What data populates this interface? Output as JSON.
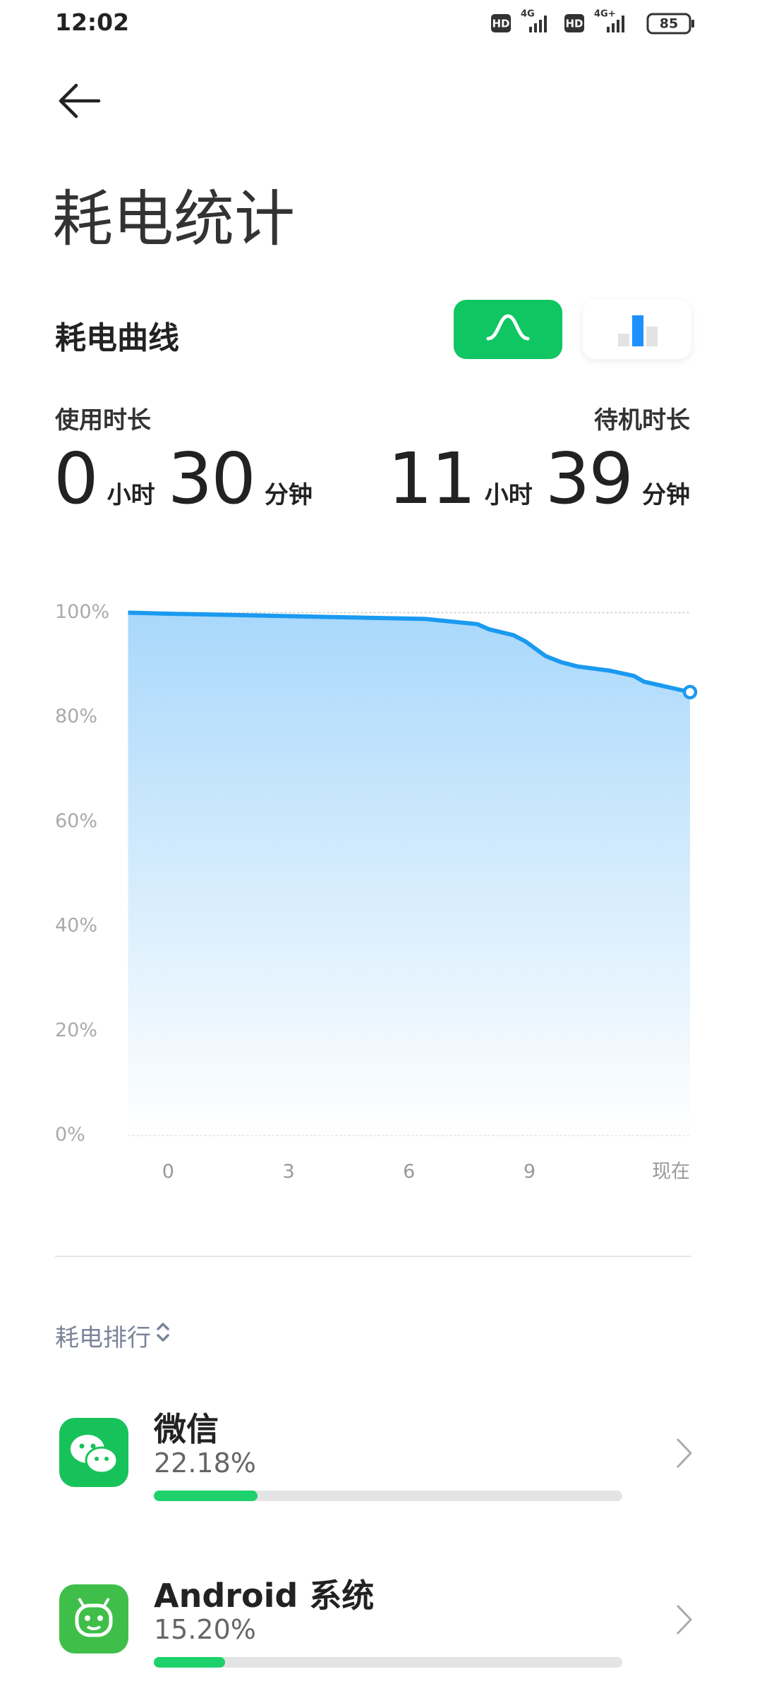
{
  "status_bar": {
    "time": "12:02",
    "network": [
      "HD",
      "4G",
      "HD",
      "4G+"
    ],
    "battery": 85
  },
  "header": {
    "title": "耗电统计"
  },
  "curve_section": {
    "title": "耗电曲线",
    "usage": {
      "label": "使用时长",
      "hours": 0,
      "hours_unit": "小时",
      "minutes": 30,
      "minutes_unit": "分钟"
    },
    "standby": {
      "label": "待机时长",
      "hours": 11,
      "hours_unit": "小时",
      "minutes": 39,
      "minutes_unit": "分钟"
    }
  },
  "chart_data": {
    "type": "line",
    "x": [
      -1,
      0,
      6.4,
      7.7,
      8.0,
      8.6,
      8.9,
      9.4,
      9.8,
      10.2,
      11.0,
      11.6,
      11.85,
      13.0
    ],
    "values": [
      100,
      99.8,
      98.8,
      97.8,
      96.8,
      95.7,
      94.5,
      91.7,
      90.5,
      89.7,
      88.9,
      87.9,
      86.8,
      84.8
    ],
    "color": "#1a9af0",
    "xlim": [
      -1,
      13
    ],
    "xticks": [
      0,
      3,
      6,
      9,
      {
        "value": 13,
        "label": "现在"
      }
    ],
    "ylim": [
      0,
      100
    ],
    "yticks": [
      {
        "value": 0,
        "label": "0%"
      },
      {
        "value": 20,
        "label": "20%"
      },
      {
        "value": 40,
        "label": "40%"
      },
      {
        "value": 60,
        "label": "60%"
      },
      {
        "value": 80,
        "label": "80%"
      },
      {
        "value": 100,
        "label": "100%"
      }
    ],
    "grid": true
  },
  "ranking": {
    "title": "耗电排行",
    "apps": [
      {
        "name": "微信",
        "percent": 22.18,
        "percent_label": "22.18%"
      },
      {
        "name": "Android 系统",
        "percent": 15.2,
        "percent_label": "15.20%"
      }
    ]
  }
}
